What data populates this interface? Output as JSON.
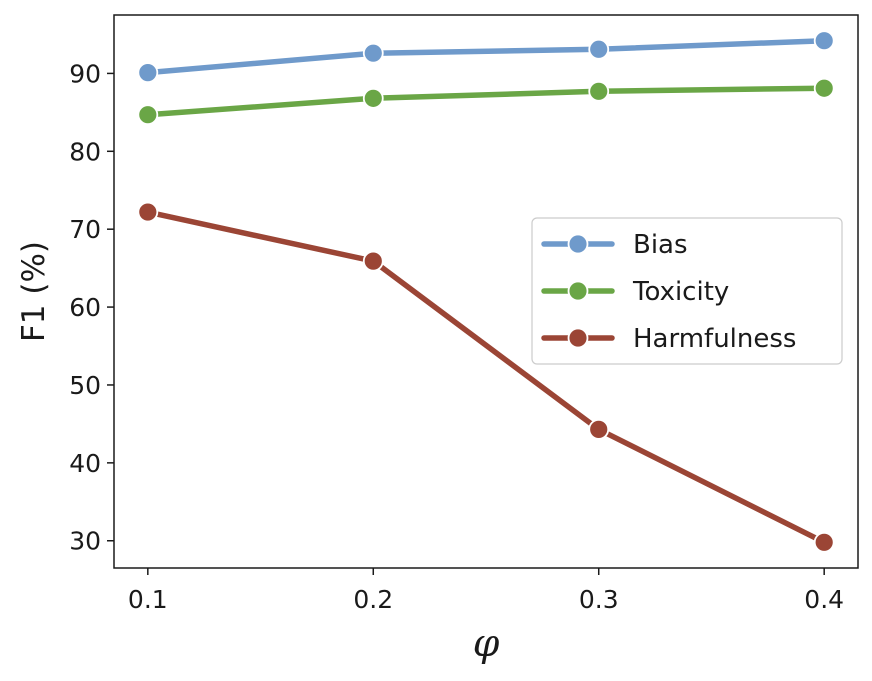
{
  "chart_data": {
    "type": "line",
    "title": "",
    "xlabel": "φ",
    "ylabel": "F1 (%)",
    "x": [
      0.1,
      0.2,
      0.3,
      0.4
    ],
    "x_tick_labels": [
      "0.1",
      "0.2",
      "0.3",
      "0.4"
    ],
    "xlim": [
      0.085,
      0.415
    ],
    "ylim": [
      26.5,
      97.5
    ],
    "y_ticks": [
      30,
      40,
      50,
      60,
      70,
      80,
      90
    ],
    "y_tick_labels": [
      "30",
      "40",
      "50",
      "60",
      "70",
      "80",
      "90"
    ],
    "grid": false,
    "legend_position": "center-right",
    "series": [
      {
        "name": "Bias",
        "values": [
          90.1,
          92.6,
          93.1,
          94.2
        ],
        "color": "#6f9acb"
      },
      {
        "name": "Toxicity",
        "values": [
          84.7,
          86.8,
          87.7,
          88.1
        ],
        "color": "#6aa646"
      },
      {
        "name": "Harmfulness",
        "values": [
          72.2,
          65.9,
          44.3,
          29.8
        ],
        "color": "#9b4535"
      }
    ]
  }
}
